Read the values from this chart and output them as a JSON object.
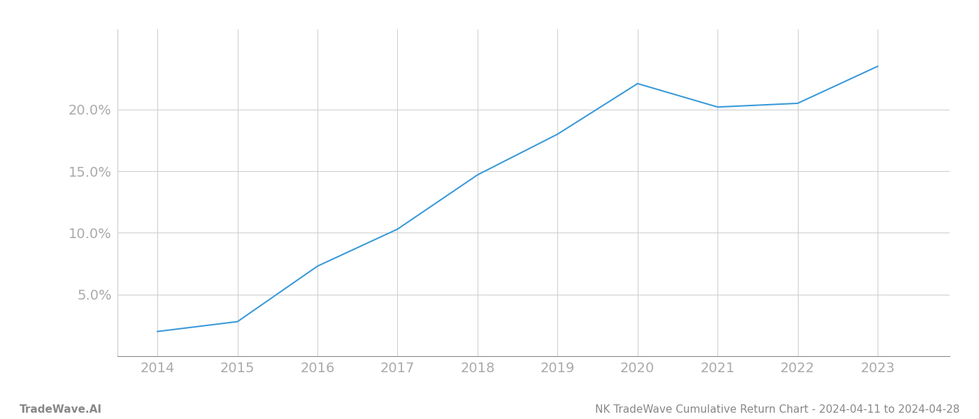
{
  "x_years": [
    2014,
    2015,
    2016,
    2017,
    2018,
    2019,
    2020,
    2021,
    2022,
    2023
  ],
  "y_values": [
    2.0,
    2.8,
    7.3,
    10.3,
    14.7,
    18.0,
    22.1,
    20.2,
    20.5,
    23.5
  ],
  "line_color": "#3a9ad9",
  "line_width": 1.5,
  "background_color": "#ffffff",
  "grid_color": "#cccccc",
  "ytick_labels": [
    "5.0%",
    "10.0%",
    "15.0%",
    "20.0%"
  ],
  "ytick_values": [
    5.0,
    10.0,
    15.0,
    20.0
  ],
  "footer_left": "TradeWave.AI",
  "footer_right": "NK TradeWave Cumulative Return Chart - 2024-04-11 to 2024-04-28",
  "footer_color": "#888888",
  "footer_fontsize": 11,
  "tick_label_fontsize": 14,
  "tick_label_color": "#aaaaaa",
  "xlim": [
    2013.5,
    2023.9
  ],
  "ylim": [
    0,
    26.5
  ]
}
